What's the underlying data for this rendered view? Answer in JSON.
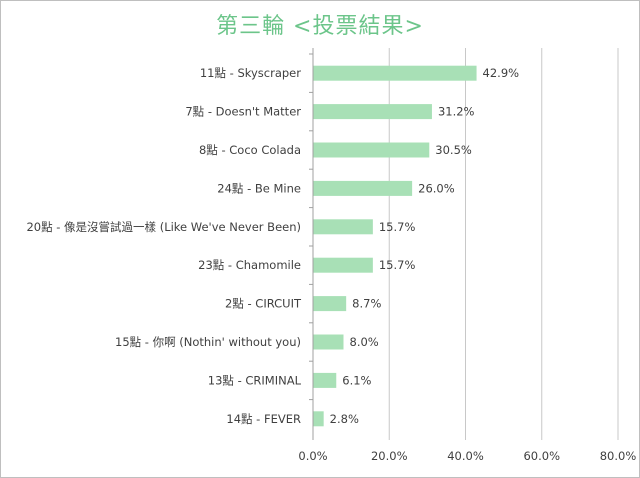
{
  "chart_data": {
    "type": "bar",
    "orientation": "horizontal",
    "title": "第三輪 <投票結果>",
    "categories": [
      "11點 - Skyscraper",
      "7點 - Doesn't Matter",
      "8點 - Coco Colada",
      "24點 - Be Mine",
      "20點 - 像是沒嘗試過一樣 (Like We've Never Been)",
      "23點 - Chamomile",
      "2點 - CIRCUIT",
      "15點 - 你啊 (Nothin' without you)",
      "13點 - CRIMINAL",
      "14點 - FEVER"
    ],
    "values": [
      42.9,
      31.2,
      30.5,
      26.0,
      15.7,
      15.7,
      8.7,
      8.0,
      6.1,
      2.8
    ],
    "value_labels": [
      "42.9%",
      "31.2%",
      "30.5%",
      "26.0%",
      "15.7%",
      "15.7%",
      "8.7%",
      "8.0%",
      "6.1%",
      "2.8%"
    ],
    "xlim": [
      0,
      80
    ],
    "x_ticks": [
      0,
      20,
      40,
      60,
      80
    ],
    "x_tick_labels": [
      "0.0%",
      "20.0%",
      "40.0%",
      "60.0%",
      "80.0%"
    ],
    "xlabel": "",
    "ylabel": "",
    "grid": "vertical",
    "legend": "none",
    "colors": {
      "bar": "#a8e0b6",
      "title": "#6cc58a",
      "grid": "#c8c8c8",
      "axis": "#a0a0a0",
      "text": "#404040"
    }
  }
}
